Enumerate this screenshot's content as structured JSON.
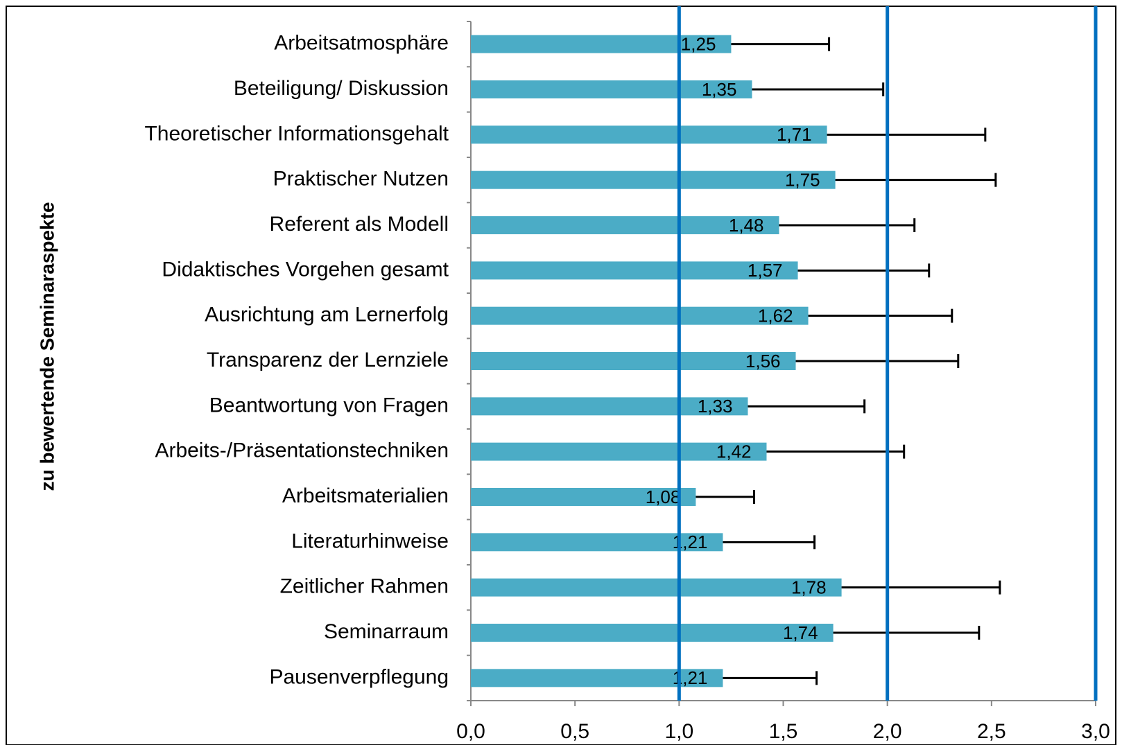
{
  "chart_data": {
    "type": "bar",
    "orientation": "horizontal",
    "y_axis_label": "zu bewertende Seminaraspekte",
    "categories": [
      "Arbeitsatmosphäre",
      "Beteiligung/ Diskussion",
      "Theoretischer Informationsgehalt",
      "Praktischer Nutzen",
      "Referent als Modell",
      "Didaktisches Vorgehen gesamt",
      "Ausrichtung am Lernerfolg",
      "Transparenz der Lernziele",
      "Beantwortung von Fragen",
      "Arbeits-/Präsentationstechniken",
      "Arbeitsmaterialien",
      "Literaturhinweise",
      "Zeitlicher Rahmen",
      "Seminarraum",
      "Pausenverpflegung"
    ],
    "values": [
      1.25,
      1.35,
      1.71,
      1.75,
      1.48,
      1.57,
      1.62,
      1.56,
      1.33,
      1.42,
      1.08,
      1.21,
      1.78,
      1.74,
      1.21
    ],
    "value_labels": [
      "1,25",
      "1,35",
      "1,71",
      "1,75",
      "1,48",
      "1,57",
      "1,62",
      "1,56",
      "1,33",
      "1,42",
      "1,08",
      "1,21",
      "1,78",
      "1,74",
      "1,21"
    ],
    "errors": [
      0.47,
      0.63,
      0.76,
      0.77,
      0.65,
      0.63,
      0.69,
      0.78,
      0.56,
      0.66,
      0.28,
      0.44,
      0.76,
      0.7,
      0.45
    ],
    "color": "#4bacc6",
    "error_color": "#000000",
    "xlim": [
      0,
      3
    ],
    "xticks": [
      {
        "value": 0,
        "label": "0,0"
      },
      {
        "value": 0.5,
        "label": "0,5"
      },
      {
        "value": 1,
        "label": "1,0"
      },
      {
        "value": 1.5,
        "label": "1,5"
      },
      {
        "value": 2,
        "label": "2,0"
      },
      {
        "value": 2.5,
        "label": "2,5"
      },
      {
        "value": 3,
        "label": "3,0"
      }
    ],
    "reference_lines": [
      1,
      2,
      3
    ],
    "reference_color": "#0070c0"
  }
}
